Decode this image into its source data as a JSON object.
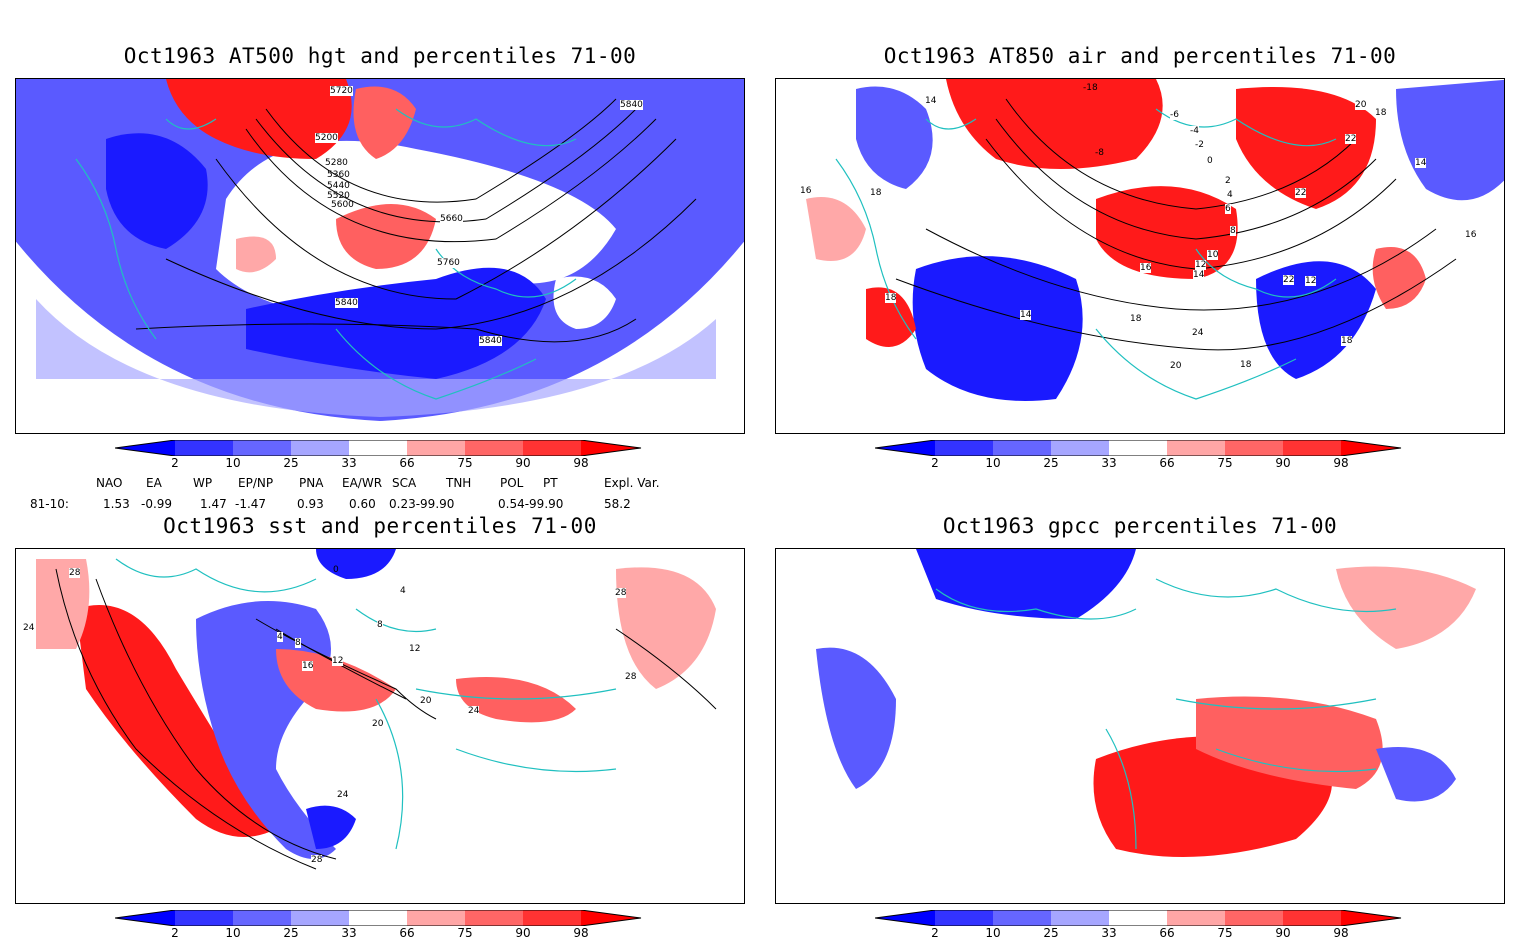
{
  "panels": [
    {
      "title": "Oct1963 AT500 hgt and percentiles 71-00",
      "contour_labels": [
        "5720",
        "5200",
        "5280",
        "5360",
        "5440",
        "5520",
        "5600",
        "5660",
        "5760",
        "5840",
        "5840",
        "5840"
      ]
    },
    {
      "title": "Oct1963 AT850 air and percentiles 71-00",
      "contour_labels": [
        "16",
        "18",
        "14",
        "-18",
        "-6",
        "-4",
        "-2",
        "0",
        "-8",
        "2",
        "4",
        "6",
        "8",
        "10",
        "12",
        "14",
        "16",
        "18",
        "20",
        "22",
        "22",
        "14",
        "16",
        "18",
        "18",
        "14",
        "24",
        "20",
        "18",
        "18",
        "22",
        "12"
      ]
    },
    {
      "title": "Oct1963 sst and percentiles 71-00",
      "contour_labels": [
        "28",
        "24",
        "0",
        "4",
        "8",
        "12",
        "16",
        "20",
        "24",
        "28",
        "28",
        "20",
        "24",
        "28",
        "8",
        "12",
        "4"
      ]
    },
    {
      "title": "Oct1963 gpcc percentiles 71-00",
      "contour_labels": []
    }
  ],
  "colorbar": {
    "labels": [
      "2",
      "10",
      "25",
      "33",
      "66",
      "75",
      "90",
      "98"
    ],
    "colors": [
      "#0000ff",
      "#3333ff",
      "#6666ff",
      "#a6a6ff",
      "#ffffff",
      "#ffa6a6",
      "#ff6666",
      "#ff3333",
      "#ff0000"
    ]
  },
  "indices": {
    "headers": [
      "NAO",
      "EA",
      "WP",
      "EP/NP",
      "PNA",
      "EA/WR",
      "SCA",
      "TNH",
      "POL",
      "PT",
      "Expl. Var."
    ],
    "row_label": "81-10:",
    "values": [
      "1.53",
      "-0.99",
      "1.47",
      "-1.47",
      "0.93",
      "0.60",
      "0.23-99.90",
      "0.54-99.90",
      "58.2"
    ]
  },
  "map_colors": {
    "strong_blue": "#1a1aff",
    "mid_blue": "#5a5aff",
    "light_blue": "#a8a8ff",
    "light_red": "#ffa8a8",
    "mid_red": "#ff6060",
    "strong_red": "#ff1a1a",
    "coast": "#20c0c0",
    "contour": "#000000"
  }
}
